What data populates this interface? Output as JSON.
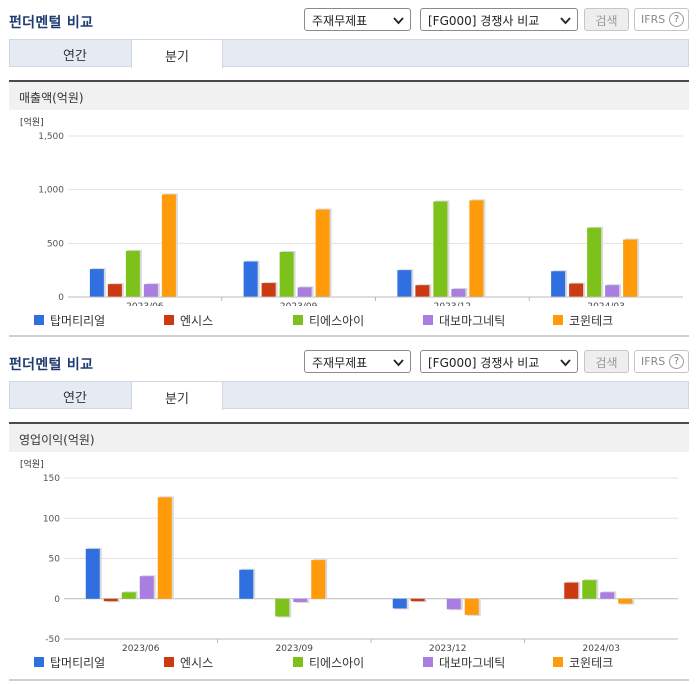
{
  "sections": [
    {
      "header": {
        "title": "펀더멘털 비교",
        "select_a": "주재무제표",
        "select_b": "[FG000] 경쟁사 비교",
        "search_label": "검색",
        "ifrs_label": "IFRS",
        "help_label": "?"
      },
      "tabs": [
        {
          "label": "연간"
        },
        {
          "label": "분기"
        }
      ],
      "metric_title": "매출액(억원)"
    },
    {
      "header": {
        "title": "펀더멘털 비교",
        "select_a": "주재무제표",
        "select_b": "[FG000] 경쟁사 비교",
        "search_label": "검색",
        "ifrs_label": "IFRS",
        "help_label": "?"
      },
      "tabs": [
        {
          "label": "연간"
        },
        {
          "label": "분기"
        }
      ],
      "metric_title": "영업이익(억원)"
    }
  ],
  "colors": {
    "title": "#1f3b70",
    "series": [
      "#2f6fe0",
      "#cc3a12",
      "#7cc21a",
      "#a97ee0",
      "#ff9a0a"
    ]
  },
  "chart_data": [
    {
      "type": "bar",
      "title": "매출액(억원)",
      "unit_label": "[억원]",
      "categories": [
        "2023/06",
        "2023/09",
        "2023/12",
        "2024/03"
      ],
      "ylim": [
        0,
        1500
      ],
      "yticks": [
        "0",
        "500",
        "1,000",
        "1,500"
      ],
      "ytick_values": [
        0,
        500,
        1000,
        1500
      ],
      "grid": true,
      "legend": "bottom",
      "series": [
        {
          "name": "탑머티리얼",
          "values": [
            260,
            330,
            250,
            240
          ]
        },
        {
          "name": "엔시스",
          "values": [
            120,
            130,
            110,
            125
          ]
        },
        {
          "name": "티에스아이",
          "values": [
            430,
            420,
            890,
            645
          ]
        },
        {
          "name": "대보마그네틱",
          "values": [
            120,
            90,
            75,
            110
          ]
        },
        {
          "name": "코윈테크",
          "values": [
            955,
            815,
            900,
            535
          ]
        }
      ]
    },
    {
      "type": "bar",
      "title": "영업이익(억원)",
      "unit_label": "[억원]",
      "categories": [
        "2023/06",
        "2023/09",
        "2023/12",
        "2024/03"
      ],
      "ylim": [
        -50,
        150
      ],
      "yticks": [
        "-50",
        "0",
        "50",
        "100",
        "150"
      ],
      "ytick_values": [
        -50,
        0,
        50,
        100,
        150
      ],
      "grid": true,
      "legend": "bottom",
      "series": [
        {
          "name": "탑머티리얼",
          "values": [
            62,
            36,
            -12,
            0
          ]
        },
        {
          "name": "엔시스",
          "values": [
            -3,
            0,
            -3,
            20
          ]
        },
        {
          "name": "티에스아이",
          "values": [
            8,
            -22,
            0,
            23
          ]
        },
        {
          "name": "대보마그네틱",
          "values": [
            28,
            -4,
            -13,
            8
          ]
        },
        {
          "name": "코윈테크",
          "values": [
            126,
            48,
            -20,
            -6
          ]
        }
      ]
    }
  ]
}
